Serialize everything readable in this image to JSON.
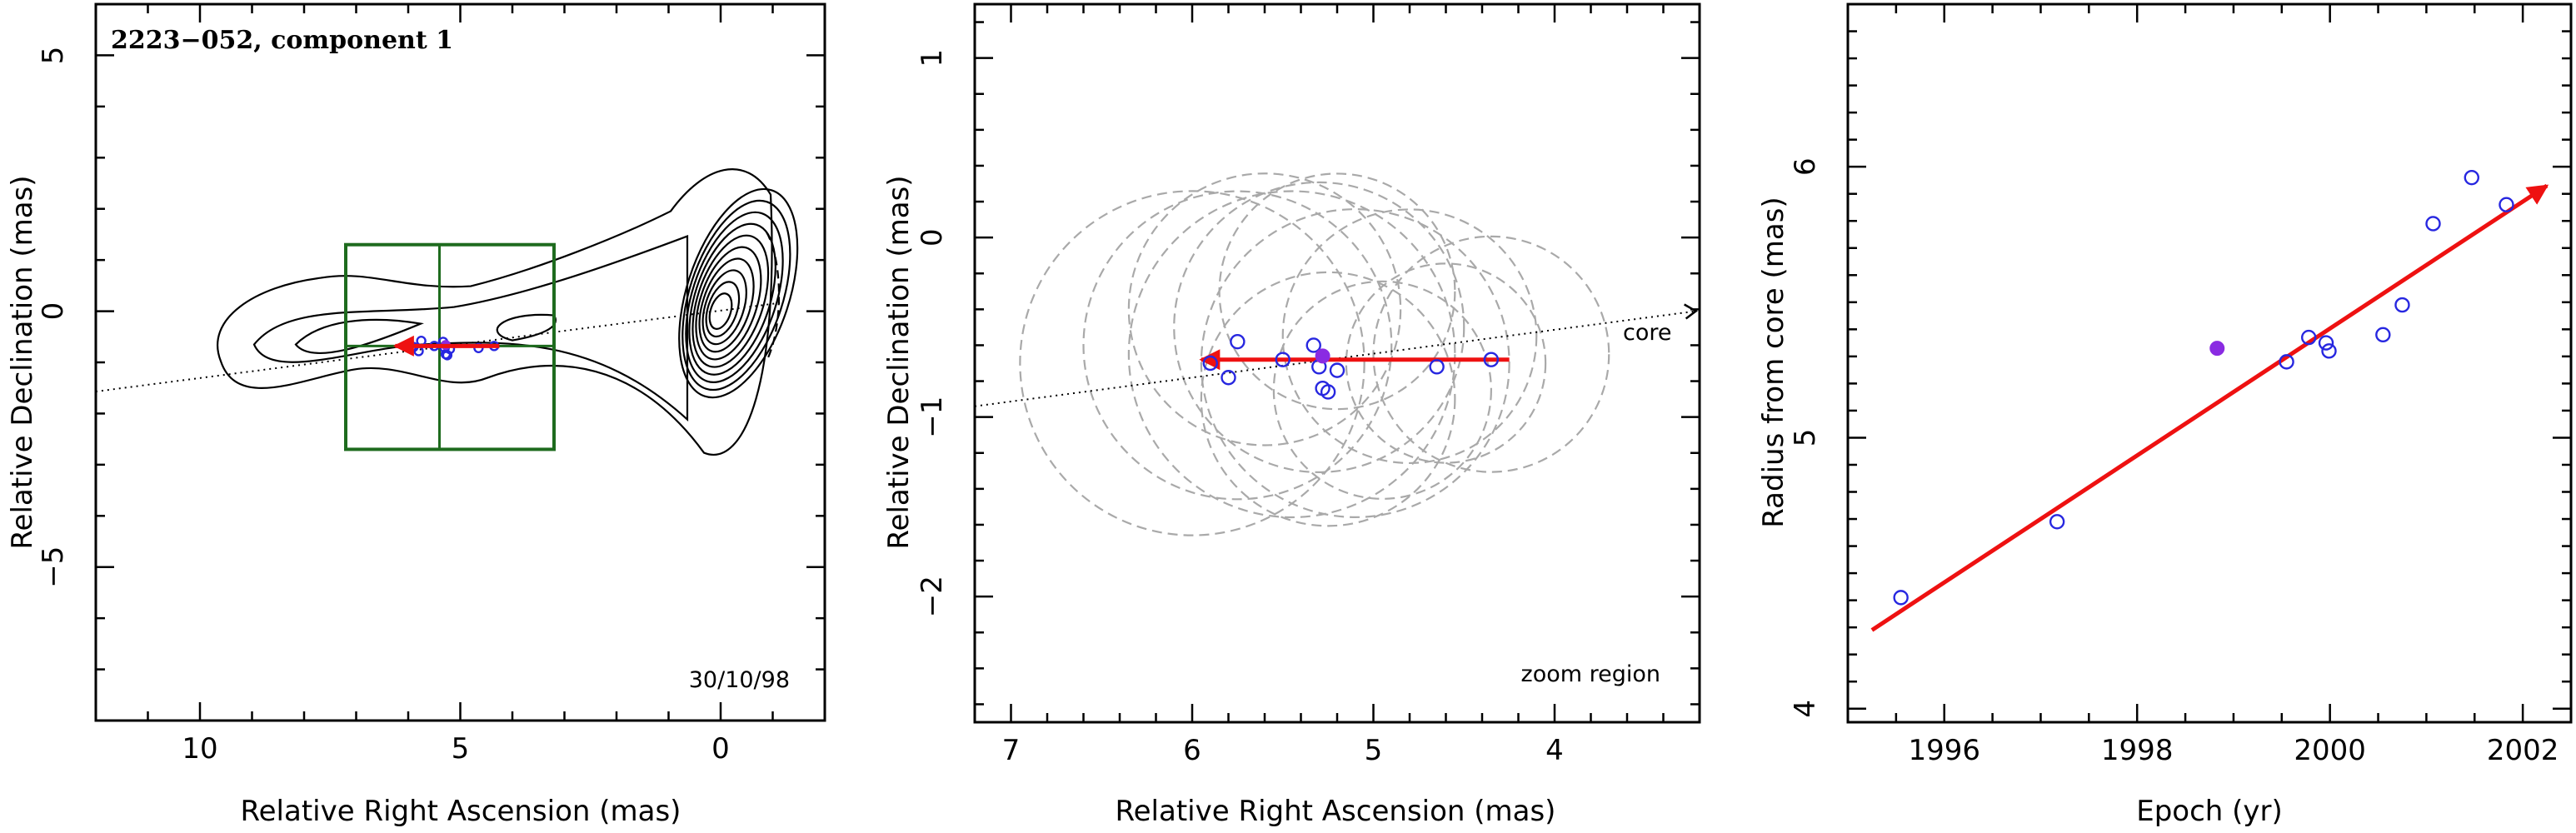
{
  "figure": {
    "panel1": {
      "title": "2223−052, component 1",
      "date_label": "30/10/98",
      "xlabel": "Relative Right Ascension (mas)",
      "ylabel": "Relative Declination (mas)"
    },
    "panel2": {
      "xlabel": "Relative Right Ascension (mas)",
      "ylabel": "Relative Declination (mas)",
      "core_label": "core",
      "zoom_label": "zoom region"
    },
    "panel3": {
      "xlabel": "Epoch (yr)",
      "ylabel": "Radius from core (mas)"
    }
  },
  "colors": {
    "points_open": "#2727e0",
    "point_filled": "#8a2be2",
    "fit_arrow": "#ee1111",
    "zoom_box": "#1e6b1e",
    "beam_circles": "#a9a9a9"
  },
  "chart_data": [
    {
      "type": "scatter",
      "subtype": "contour map",
      "title": "2223−052, component 1",
      "annotation": "30/10/98",
      "xlabel": "Relative Right Ascension (mas)",
      "ylabel": "Relative Declination (mas)",
      "xlim": [
        12,
        -2
      ],
      "ylim": [
        -8,
        6
      ],
      "xticks": [
        "10",
        "5",
        "0"
      ],
      "yticks": [
        "5",
        "0",
        "−5"
      ],
      "x_tick_values": [
        10,
        5,
        0
      ],
      "y_tick_values": [
        5,
        0,
        -5
      ],
      "zoom_box": {
        "x": [
          3.2,
          7.2
        ],
        "y": [
          -2.7,
          1.3
        ]
      },
      "points_ra": [
        5.9,
        5.8,
        5.75,
        5.5,
        5.33,
        5.3,
        5.28,
        5.25,
        5.2,
        4.65,
        4.35
      ],
      "points_dec": [
        -0.7,
        -0.78,
        -0.58,
        -0.68,
        -0.6,
        -0.72,
        -0.84,
        -0.86,
        -0.74,
        -0.72,
        -0.68
      ],
      "filled_point": {
        "ra": 5.28,
        "dec": -0.66
      },
      "motion_arrow": {
        "from": [
          4.25,
          -0.68
        ],
        "to": [
          6.25,
          -0.68
        ]
      },
      "jet_axis": {
        "from": [
          12,
          -1.57
        ],
        "to": [
          -1.2,
          0.17
        ]
      },
      "grid": false
    },
    {
      "type": "scatter",
      "title": "",
      "xlabel": "Relative Right Ascension (mas)",
      "ylabel": "Relative Declination (mas)",
      "xlim": [
        7.2,
        3.2
      ],
      "ylim": [
        -2.7,
        1.3
      ],
      "xticks": [
        "7",
        "6",
        "5",
        "4"
      ],
      "yticks": [
        "1",
        "0",
        "−1",
        "−2"
      ],
      "x_tick_values": [
        7,
        6,
        5,
        4
      ],
      "y_tick_values": [
        1,
        0,
        -1,
        -2
      ],
      "series": [
        {
          "marker": "open circle",
          "x": [
            5.9,
            5.8,
            5.75,
            5.5,
            5.33,
            5.3,
            5.28,
            5.25,
            5.2,
            4.65,
            4.35
          ],
          "y": [
            -0.7,
            -0.78,
            -0.58,
            -0.68,
            -0.6,
            -0.72,
            -0.84,
            -0.86,
            -0.74,
            -0.72,
            -0.68
          ]
        },
        {
          "marker": "filled circle",
          "x": [
            5.28
          ],
          "y": [
            -0.66
          ]
        }
      ],
      "beam_circles": [
        {
          "x": 6.0,
          "y": -0.7,
          "r": 0.95
        },
        {
          "x": 5.75,
          "y": -0.6,
          "r": 0.85
        },
        {
          "x": 5.6,
          "y": -0.4,
          "r": 0.75
        },
        {
          "x": 5.45,
          "y": -0.65,
          "r": 0.9
        },
        {
          "x": 5.3,
          "y": -0.5,
          "r": 0.8
        },
        {
          "x": 5.25,
          "y": -0.9,
          "r": 0.7
        },
        {
          "x": 5.2,
          "y": -0.3,
          "r": 0.65
        },
        {
          "x": 5.1,
          "y": -0.7,
          "r": 0.85
        },
        {
          "x": 4.95,
          "y": -0.85,
          "r": 0.6
        },
        {
          "x": 4.8,
          "y": -0.55,
          "r": 0.7
        },
        {
          "x": 4.6,
          "y": -0.7,
          "r": 0.55
        },
        {
          "x": 4.35,
          "y": -0.65,
          "r": 0.65
        }
      ],
      "motion_arrow": {
        "from": [
          4.25,
          -0.68
        ],
        "to": [
          5.95,
          -0.68
        ]
      },
      "jet_axis": {
        "from": [
          7.2,
          -0.94
        ],
        "to": [
          3.22,
          -0.41
        ]
      },
      "annotations": [
        "core",
        "zoom region"
      ],
      "grid": false
    },
    {
      "type": "scatter",
      "title": "",
      "xlabel": "Epoch (yr)",
      "ylabel": "Radius from core (mas)",
      "xlim": [
        1995,
        2002.5
      ],
      "ylim": [
        3.95,
        6.6
      ],
      "xticks": [
        "1996",
        "1998",
        "2000",
        "2002"
      ],
      "yticks": [
        "4",
        "5",
        "6"
      ],
      "x_tick_values": [
        1996,
        1998,
        2000,
        2002
      ],
      "y_tick_values": [
        4,
        5,
        6
      ],
      "series": [
        {
          "marker": "open circle",
          "x": [
            1995.55,
            1997.17,
            1999.55,
            1999.78,
            1999.96,
            1999.99,
            2000.55,
            2000.75,
            2001.07,
            2001.47,
            2001.83
          ],
          "y": [
            4.41,
            4.69,
            5.28,
            5.37,
            5.35,
            5.32,
            5.38,
            5.49,
            5.79,
            5.96,
            5.86
          ]
        },
        {
          "marker": "filled circle",
          "x": [
            1998.83
          ],
          "y": [
            5.33
          ]
        }
      ],
      "fit_line": {
        "from": [
          1995.25,
          4.29
        ],
        "to": [
          2002.25,
          5.93
        ]
      },
      "grid": false
    }
  ]
}
